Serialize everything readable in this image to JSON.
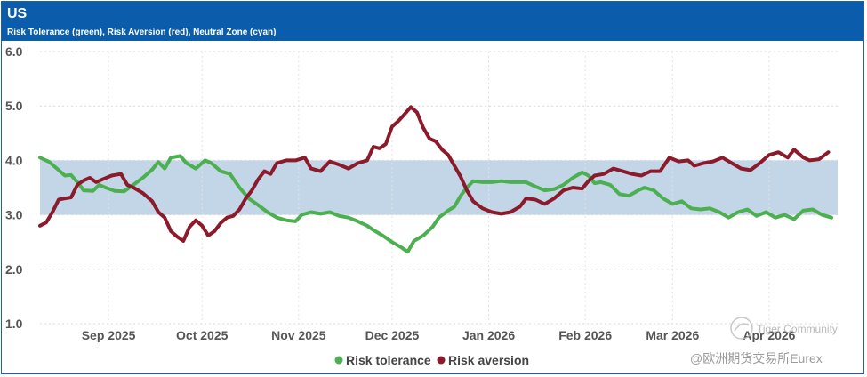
{
  "header": {
    "title": "US",
    "subtitle": "Risk Tolerance (green), Risk Aversion (red), Neutral Zone (cyan)"
  },
  "watermark": {
    "line1": "Tiger Community",
    "line2": "@欧洲期货交易所Eurex"
  },
  "colors": {
    "header_bg": "#0b5cab",
    "tolerance": "#4caf50",
    "aversion": "#8b1a2b",
    "neutral_band": "#c3d6e8"
  },
  "chart_data": {
    "type": "line",
    "title": "US",
    "subtitle": "Risk Tolerance (green), Risk Aversion (red), Neutral Zone (cyan)",
    "x_unit": "days since 2025-08-10",
    "xlim": [
      0,
      256
    ],
    "ylim": [
      1.0,
      6.0
    ],
    "y_ticks": [
      "1.0",
      "2.0",
      "3.0",
      "4.0",
      "5.0",
      "6.0"
    ],
    "x_ticks": [
      {
        "label": "Sep 2025",
        "x": 22
      },
      {
        "label": "Oct 2025",
        "x": 52
      },
      {
        "label": "Nov 2025",
        "x": 83
      },
      {
        "label": "Dec 2025",
        "x": 113
      },
      {
        "label": "Jan 2026",
        "x": 144
      },
      {
        "label": "Feb 2026",
        "x": 175
      },
      {
        "label": "Mar 2026",
        "x": 203
      },
      {
        "label": "Apr 2026",
        "x": 234
      }
    ],
    "neutral_zone": [
      3.0,
      4.0
    ],
    "legend": [
      "Risk tolerance",
      "Risk aversion"
    ],
    "grid": true,
    "series": [
      {
        "name": "Risk tolerance",
        "color": "#4caf50",
        "points": [
          [
            0,
            4.05
          ],
          [
            3,
            3.97
          ],
          [
            6,
            3.82
          ],
          [
            8,
            3.72
          ],
          [
            10,
            3.73
          ],
          [
            12,
            3.6
          ],
          [
            14,
            3.45
          ],
          [
            17,
            3.44
          ],
          [
            19,
            3.55
          ],
          [
            21,
            3.5
          ],
          [
            24,
            3.44
          ],
          [
            27,
            3.43
          ],
          [
            30,
            3.55
          ],
          [
            33,
            3.68
          ],
          [
            36,
            3.83
          ],
          [
            38,
            3.97
          ],
          [
            40,
            3.85
          ],
          [
            42,
            4.05
          ],
          [
            45,
            4.08
          ],
          [
            47,
            3.95
          ],
          [
            50,
            3.85
          ],
          [
            53,
            4.0
          ],
          [
            55,
            3.95
          ],
          [
            58,
            3.8
          ],
          [
            61,
            3.75
          ],
          [
            64,
            3.5
          ],
          [
            67,
            3.3
          ],
          [
            70,
            3.18
          ],
          [
            73,
            3.05
          ],
          [
            76,
            2.95
          ],
          [
            79,
            2.9
          ],
          [
            82,
            2.88
          ],
          [
            84,
            3.0
          ],
          [
            87,
            3.05
          ],
          [
            90,
            3.02
          ],
          [
            93,
            3.05
          ],
          [
            96,
            2.98
          ],
          [
            99,
            2.95
          ],
          [
            102,
            2.88
          ],
          [
            105,
            2.8
          ],
          [
            107,
            2.72
          ],
          [
            110,
            2.62
          ],
          [
            113,
            2.5
          ],
          [
            116,
            2.4
          ],
          [
            118,
            2.32
          ],
          [
            120,
            2.52
          ],
          [
            123,
            2.62
          ],
          [
            126,
            2.78
          ],
          [
            128,
            2.95
          ],
          [
            131,
            3.08
          ],
          [
            133,
            3.15
          ],
          [
            135,
            3.35
          ],
          [
            137,
            3.5
          ],
          [
            139,
            3.62
          ],
          [
            142,
            3.6
          ],
          [
            145,
            3.6
          ],
          [
            148,
            3.62
          ],
          [
            151,
            3.6
          ],
          [
            154,
            3.6
          ],
          [
            156,
            3.6
          ],
          [
            159,
            3.52
          ],
          [
            162,
            3.45
          ],
          [
            165,
            3.47
          ],
          [
            168,
            3.55
          ],
          [
            171,
            3.68
          ],
          [
            174,
            3.78
          ],
          [
            176,
            3.72
          ],
          [
            178,
            3.58
          ],
          [
            180,
            3.6
          ],
          [
            183,
            3.55
          ],
          [
            186,
            3.38
          ],
          [
            189,
            3.35
          ],
          [
            192,
            3.45
          ],
          [
            194,
            3.5
          ],
          [
            197,
            3.45
          ],
          [
            200,
            3.3
          ],
          [
            203,
            3.2
          ],
          [
            206,
            3.25
          ],
          [
            209,
            3.12
          ],
          [
            212,
            3.1
          ],
          [
            215,
            3.12
          ],
          [
            218,
            3.05
          ],
          [
            221,
            2.95
          ],
          [
            224,
            3.05
          ],
          [
            227,
            3.1
          ],
          [
            230,
            2.98
          ],
          [
            233,
            3.05
          ],
          [
            236,
            2.95
          ],
          [
            239,
            3.0
          ],
          [
            242,
            2.92
          ],
          [
            245,
            3.08
          ],
          [
            248,
            3.1
          ],
          [
            251,
            3.0
          ],
          [
            254,
            2.95
          ]
        ]
      },
      {
        "name": "Risk aversion",
        "color": "#8b1a2b",
        "points": [
          [
            0,
            2.8
          ],
          [
            2,
            2.86
          ],
          [
            4,
            3.05
          ],
          [
            6,
            3.28
          ],
          [
            8,
            3.3
          ],
          [
            10,
            3.32
          ],
          [
            12,
            3.55
          ],
          [
            14,
            3.63
          ],
          [
            16,
            3.68
          ],
          [
            18,
            3.6
          ],
          [
            20,
            3.65
          ],
          [
            23,
            3.72
          ],
          [
            26,
            3.75
          ],
          [
            28,
            3.55
          ],
          [
            30,
            3.5
          ],
          [
            33,
            3.4
          ],
          [
            36,
            3.25
          ],
          [
            38,
            3.05
          ],
          [
            40,
            2.95
          ],
          [
            42,
            2.7
          ],
          [
            44,
            2.6
          ],
          [
            46,
            2.52
          ],
          [
            48,
            2.78
          ],
          [
            50,
            2.9
          ],
          [
            52,
            2.8
          ],
          [
            54,
            2.62
          ],
          [
            56,
            2.7
          ],
          [
            58,
            2.85
          ],
          [
            60,
            2.95
          ],
          [
            62,
            2.98
          ],
          [
            64,
            3.1
          ],
          [
            66,
            3.3
          ],
          [
            68,
            3.45
          ],
          [
            70,
            3.65
          ],
          [
            72,
            3.8
          ],
          [
            74,
            3.75
          ],
          [
            76,
            3.95
          ],
          [
            79,
            4.0
          ],
          [
            82,
            4.0
          ],
          [
            85,
            4.05
          ],
          [
            87,
            3.85
          ],
          [
            90,
            3.8
          ],
          [
            93,
            3.98
          ],
          [
            96,
            3.92
          ],
          [
            99,
            3.85
          ],
          [
            102,
            3.95
          ],
          [
            105,
            4.0
          ],
          [
            107,
            4.25
          ],
          [
            109,
            4.22
          ],
          [
            111,
            4.3
          ],
          [
            113,
            4.62
          ],
          [
            115,
            4.72
          ],
          [
            117,
            4.85
          ],
          [
            119,
            4.98
          ],
          [
            121,
            4.88
          ],
          [
            123,
            4.6
          ],
          [
            125,
            4.4
          ],
          [
            127,
            4.35
          ],
          [
            129,
            4.2
          ],
          [
            131,
            4.1
          ],
          [
            133,
            3.9
          ],
          [
            135,
            3.7
          ],
          [
            137,
            3.45
          ],
          [
            139,
            3.25
          ],
          [
            142,
            3.12
          ],
          [
            145,
            3.05
          ],
          [
            148,
            3.02
          ],
          [
            151,
            3.05
          ],
          [
            154,
            3.15
          ],
          [
            156,
            3.3
          ],
          [
            159,
            3.28
          ],
          [
            162,
            3.2
          ],
          [
            165,
            3.3
          ],
          [
            168,
            3.45
          ],
          [
            171,
            3.5
          ],
          [
            174,
            3.48
          ],
          [
            176,
            3.62
          ],
          [
            178,
            3.72
          ],
          [
            181,
            3.75
          ],
          [
            184,
            3.85
          ],
          [
            187,
            3.8
          ],
          [
            190,
            3.75
          ],
          [
            193,
            3.72
          ],
          [
            196,
            3.8
          ],
          [
            199,
            3.8
          ],
          [
            202,
            4.05
          ],
          [
            205,
            3.98
          ],
          [
            208,
            4.0
          ],
          [
            210,
            3.9
          ],
          [
            213,
            3.95
          ],
          [
            216,
            3.98
          ],
          [
            219,
            4.05
          ],
          [
            222,
            3.95
          ],
          [
            225,
            3.85
          ],
          [
            228,
            3.82
          ],
          [
            231,
            3.95
          ],
          [
            234,
            4.1
          ],
          [
            237,
            4.15
          ],
          [
            240,
            4.05
          ],
          [
            242,
            4.2
          ],
          [
            245,
            4.05
          ],
          [
            247,
            4.0
          ],
          [
            250,
            4.02
          ],
          [
            253,
            4.15
          ]
        ]
      }
    ]
  }
}
